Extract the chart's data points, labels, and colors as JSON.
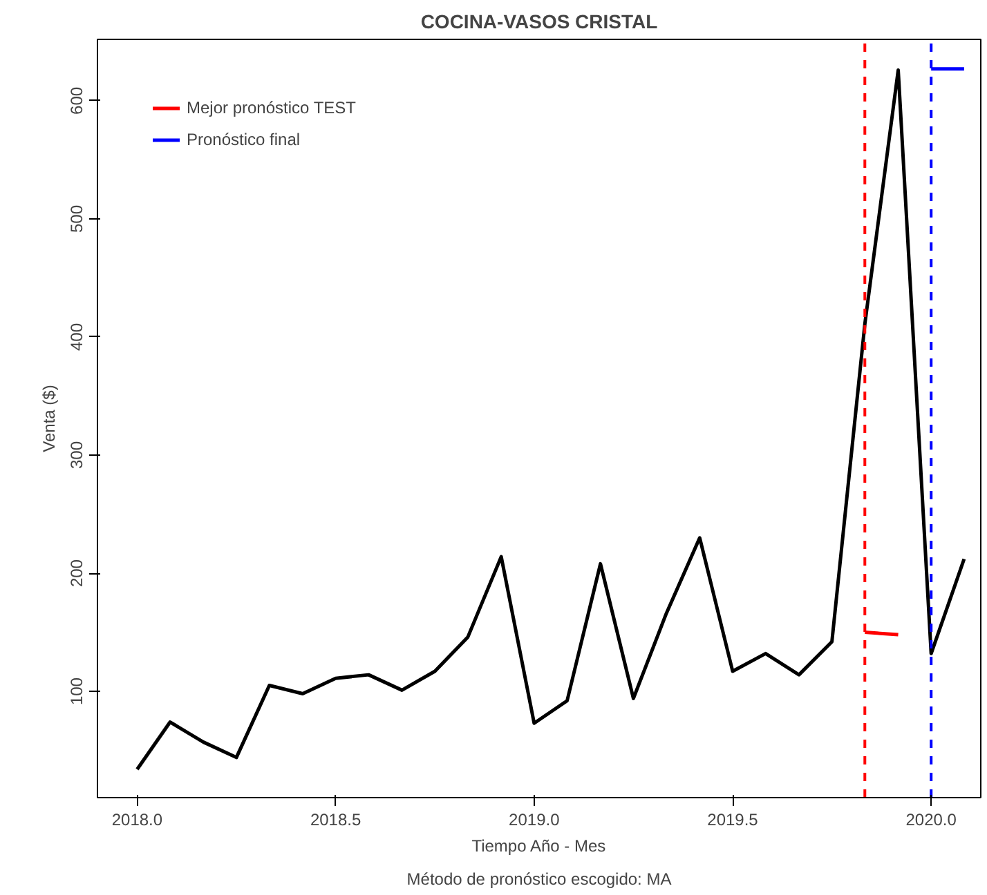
{
  "chart_data": {
    "type": "line",
    "title": "COCINA-VASOS CRISTAL",
    "xlabel": "Tiempo Año - Mes",
    "ylabel": "Venta ($)",
    "annotations": [
      "Método de pronóstico escogido: MA"
    ],
    "xlim": [
      2017.9,
      2020.125
    ],
    "ylim": [
      10,
      652
    ],
    "xticks": [
      {
        "value": 2018,
        "label": "2018.0"
      },
      2018.5,
      {
        "value": 2019,
        "label": "2019.0"
      },
      2019.5,
      {
        "value": 2020,
        "label": "2020.0"
      }
    ],
    "yticks": [
      100,
      200,
      300,
      400,
      500,
      600
    ],
    "grid": false,
    "legend": "top left",
    "line_style": "solid",
    "marker": "none",
    "series": [
      {
        "color": "#000000",
        "x": [
          2018.0,
          2018.083,
          2018.167,
          2018.25,
          2018.333,
          2018.417,
          2018.5,
          2018.583,
          2018.667,
          2018.75,
          2018.833,
          2018.917,
          2019.0,
          2019.083,
          2019.167,
          2019.25,
          2019.333,
          2019.417,
          2019.5,
          2019.583,
          2019.667,
          2019.75,
          2019.833,
          2019.917,
          2020.0,
          2020.083
        ],
        "values": [
          34,
          74,
          57,
          44,
          105,
          98,
          111,
          114,
          101,
          117,
          146,
          214,
          73,
          92,
          208,
          94,
          166,
          230,
          117,
          132,
          114,
          142,
          411,
          626,
          132,
          212
        ]
      },
      {
        "name": "Mejor pronóstico TEST",
        "color": "#ff0000",
        "x": [
          2019.833,
          2019.917
        ],
        "values": [
          150,
          148
        ]
      },
      {
        "name": "Pronóstico final",
        "color": "#0000ff",
        "x": [
          2020.0,
          2020.083
        ],
        "values": [
          627,
          627
        ]
      }
    ],
    "ref_lines": [
      {
        "axis": "x",
        "value": 2019.833,
        "color": "#ff0000",
        "line_style": "dashed"
      },
      {
        "axis": "x",
        "value": 2020.0,
        "color": "#0000ff",
        "line_style": "dashed"
      }
    ]
  }
}
